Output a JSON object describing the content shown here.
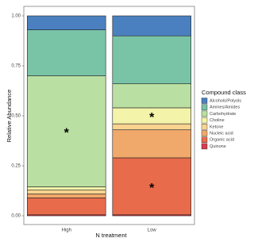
{
  "chart_data": {
    "type": "stacked_bar",
    "y_label": "Relative Abundance",
    "x_label": "N treatment",
    "categories": [
      "High",
      "Low"
    ],
    "legend_title": "Compound class",
    "legend_position": "right",
    "ylim": [
      0,
      1
    ],
    "yticks": [
      {
        "value": 0,
        "label": "0.00"
      },
      {
        "value": 0.25,
        "label": "0.25"
      },
      {
        "value": 0.5,
        "label": "0.50"
      },
      {
        "value": 0.75,
        "label": "0.75"
      },
      {
        "value": 1,
        "label": "1.00"
      }
    ],
    "grid": false,
    "series": [
      {
        "name": "Alcohols/Polyols",
        "color": "#4a80c0",
        "values": [
          0.07,
          0.1
        ]
      },
      {
        "name": "Amines/Amides",
        "color": "#79c3a6",
        "values": [
          0.23,
          0.24
        ]
      },
      {
        "name": "Carbohydrate",
        "color": "#badfa2",
        "values": [
          0.555,
          0.12
        ]
      },
      {
        "name": "Choline",
        "color": "#f3f4aa",
        "values": [
          0.015,
          0.08
        ]
      },
      {
        "name": "Ketone",
        "color": "#f9d490",
        "values": [
          0.02,
          0.03
        ]
      },
      {
        "name": "Nucleic acid",
        "color": "#f0a86b",
        "values": [
          0.02,
          0.14
        ]
      },
      {
        "name": "Organic acid",
        "color": "#e86b4b",
        "values": [
          0.085,
          0.285
        ]
      },
      {
        "name": "Quinone",
        "color": "#d53e4f",
        "values": [
          0.005,
          0.005
        ]
      }
    ],
    "annotations": [
      {
        "text": "*",
        "category": "High",
        "series": "Carbohydrate"
      },
      {
        "text": "*",
        "category": "Low",
        "series": "Choline"
      },
      {
        "text": "*",
        "category": "Low",
        "series": "Organic acid"
      }
    ]
  }
}
